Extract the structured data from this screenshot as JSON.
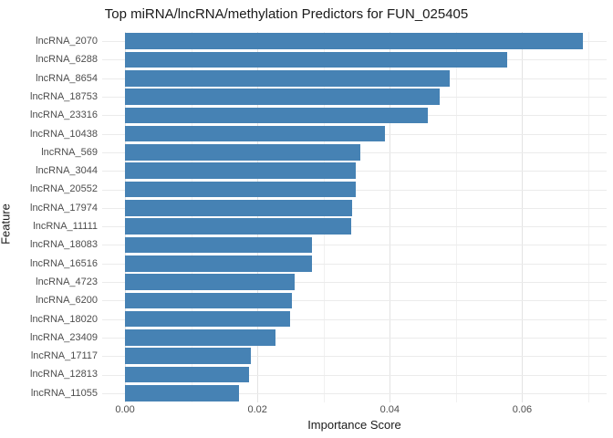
{
  "title": "Top miRNA/lncRNA/methylation Predictors for FUN_025405",
  "chart_data": {
    "type": "bar",
    "orientation": "horizontal",
    "title": "Top miRNA/lncRNA/methylation Predictors for FUN_025405",
    "xlabel": "Importance Score",
    "ylabel": "Feature",
    "categories": [
      "lncRNA_2070",
      "lncRNA_6288",
      "lncRNA_8654",
      "lncRNA_18753",
      "lncRNA_23316",
      "lncRNA_10438",
      "lncRNA_569",
      "lncRNA_3044",
      "lncRNA_20552",
      "lncRNA_17974",
      "lncRNA_11111",
      "lncRNA_18083",
      "lncRNA_16516",
      "lncRNA_4723",
      "lncRNA_6200",
      "lncRNA_18020",
      "lncRNA_23409",
      "lncRNA_17117",
      "lncRNA_12813",
      "lncRNA_11055"
    ],
    "values": [
      0.0692,
      0.0577,
      0.0491,
      0.0475,
      0.0457,
      0.0392,
      0.0355,
      0.0348,
      0.0348,
      0.0343,
      0.0341,
      0.0282,
      0.0282,
      0.0256,
      0.0252,
      0.0249,
      0.0227,
      0.019,
      0.0188,
      0.0172
    ],
    "x_ticks": [
      0,
      0.02,
      0.04,
      0.06
    ],
    "x_tick_labels": [
      "0.00",
      "0.02",
      "0.04",
      "0.06"
    ],
    "x_minor_ticks": [
      0.01,
      0.03,
      0.05,
      0.07
    ],
    "xlim": [
      -0.00345,
      0.07275
    ],
    "grid": true,
    "legend": false,
    "bar_color": "#4682B4",
    "background_color": "#FFFFFF",
    "major_grid_color": "#E3E3E3",
    "minor_grid_color": "#F1F1F1",
    "row_grid_color": "#EBEBEB",
    "tick_label_color": "#4D4D4D",
    "text_color": "#1A1A1A"
  }
}
